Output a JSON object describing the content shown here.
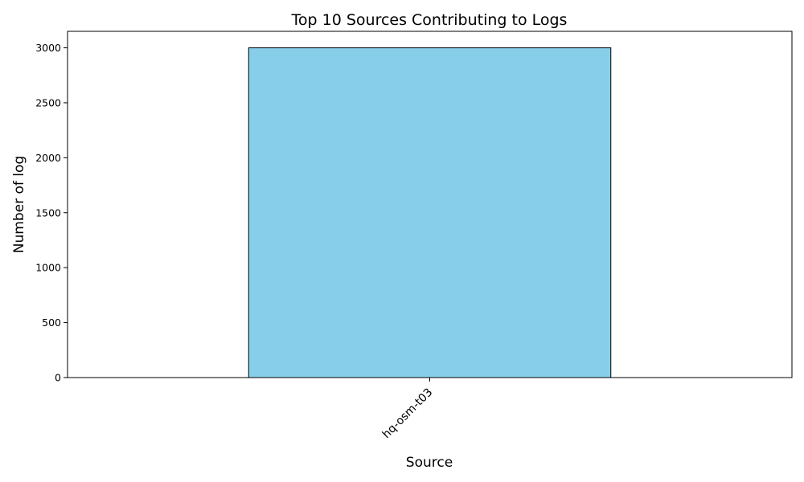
{
  "chart_data": {
    "type": "bar",
    "title": "Top 10 Sources Contributing to Logs",
    "xlabel": "Source",
    "ylabel": "Number of log",
    "categories": [
      "hq-osm-t03"
    ],
    "values": [
      3000
    ],
    "ylim": [
      0,
      3150
    ],
    "yticks": [
      0,
      500,
      1000,
      1500,
      2000,
      2500,
      3000
    ],
    "grid": false,
    "legend": false,
    "colors": {
      "bar_fill": "#87ceeb",
      "bar_edge": "#000000",
      "axis": "#000000"
    }
  }
}
